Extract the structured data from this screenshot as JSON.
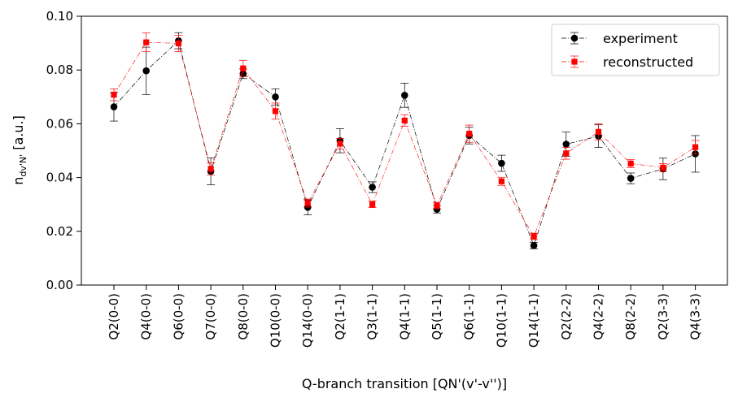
{
  "chart_data": {
    "type": "line",
    "title": "",
    "xlabel": "Q-branch transition [QN'(v'-v'')]",
    "ylabel_main": "n",
    "ylabel_sub": "dv'N'",
    "ylabel_tail": " [a.u.]",
    "ylim": [
      0.0,
      0.1
    ],
    "yticks": [
      "0.00",
      "0.02",
      "0.04",
      "0.06",
      "0.08",
      "0.10"
    ],
    "grid": false,
    "legend_position": "top-right",
    "categories": [
      "Q2(0-0)",
      "Q4(0-0)",
      "Q6(0-0)",
      "Q7(0-0)",
      "Q8(0-0)",
      "Q10(0-0)",
      "Q14(0-0)",
      "Q2(1-1)",
      "Q3(1-1)",
      "Q4(1-1)",
      "Q5(1-1)",
      "Q6(1-1)",
      "Q10(1-1)",
      "Q14(1-1)",
      "Q2(2-2)",
      "Q4(2-2)",
      "Q8(2-2)",
      "Q2(3-3)",
      "Q4(3-3)"
    ],
    "series": [
      {
        "name": "experiment",
        "color": "#000000",
        "marker": "circle",
        "values": [
          0.0663,
          0.0797,
          0.0909,
          0.0423,
          0.0786,
          0.07,
          0.0289,
          0.0537,
          0.0364,
          0.0706,
          0.0282,
          0.0556,
          0.0453,
          0.0147,
          0.0524,
          0.0554,
          0.0397,
          0.0432,
          0.0488
        ],
        "errors": [
          0.0053,
          0.0088,
          0.003,
          0.005,
          0.0018,
          0.003,
          0.0028,
          0.0045,
          0.002,
          0.0045,
          0.0014,
          0.0031,
          0.003,
          0.0012,
          0.0045,
          0.0042,
          0.002,
          0.004,
          0.0068
        ]
      },
      {
        "name": "reconstructed",
        "color": "#ff0000",
        "marker": "square",
        "values": [
          0.0708,
          0.0903,
          0.0899,
          0.0432,
          0.0806,
          0.0647,
          0.0305,
          0.0526,
          0.03,
          0.0612,
          0.0296,
          0.0563,
          0.0386,
          0.0181,
          0.049,
          0.057,
          0.0452,
          0.0437,
          0.0513
        ],
        "errors": [
          0.0022,
          0.0035,
          0.003,
          0.0022,
          0.003,
          0.003,
          0.0015,
          0.002,
          0.0012,
          0.0022,
          0.0012,
          0.0032,
          0.0015,
          0.0012,
          0.0022,
          0.003,
          0.0015,
          0.0015,
          0.0025
        ]
      }
    ]
  }
}
